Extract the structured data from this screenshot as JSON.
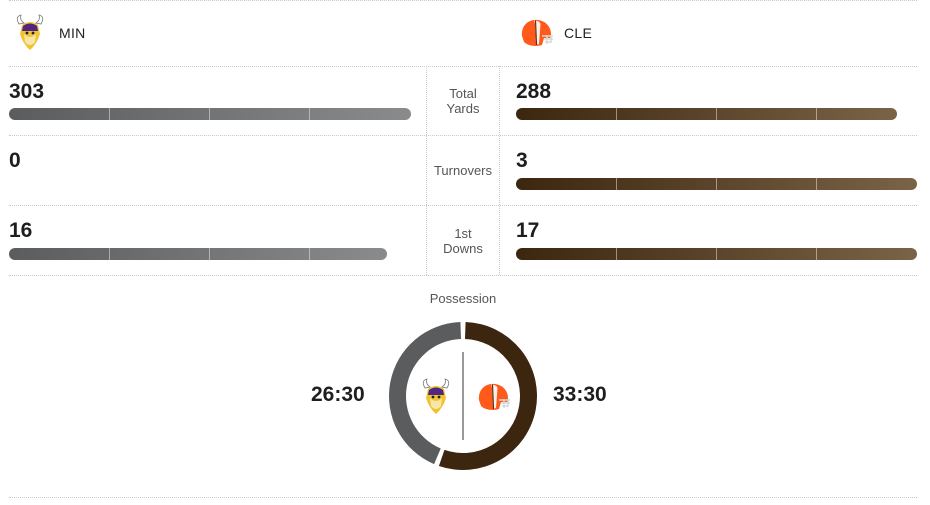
{
  "teams": {
    "home": {
      "abbr": "MIN",
      "logo_icon": "vikings-logo-icon",
      "color": "#5b5c5e"
    },
    "away": {
      "abbr": "CLE",
      "logo_icon": "browns-helmet-icon",
      "color": "#3d2610"
    }
  },
  "stats": [
    {
      "label": "Total\nYards",
      "min_value": "303",
      "cle_value": "288",
      "min_fraction": 1.0,
      "cle_fraction": 0.95
    },
    {
      "label": "Turnovers",
      "min_value": "0",
      "cle_value": "3",
      "min_fraction": 0.0,
      "cle_fraction": 1.0
    },
    {
      "label": "1st\nDowns",
      "min_value": "16",
      "cle_value": "17",
      "min_fraction": 0.94,
      "cle_fraction": 1.0
    }
  ],
  "possession": {
    "title": "Possession",
    "min_time": "26:30",
    "cle_time": "33:30",
    "min_fraction": 0.4417,
    "cle_fraction": 0.5583
  }
}
